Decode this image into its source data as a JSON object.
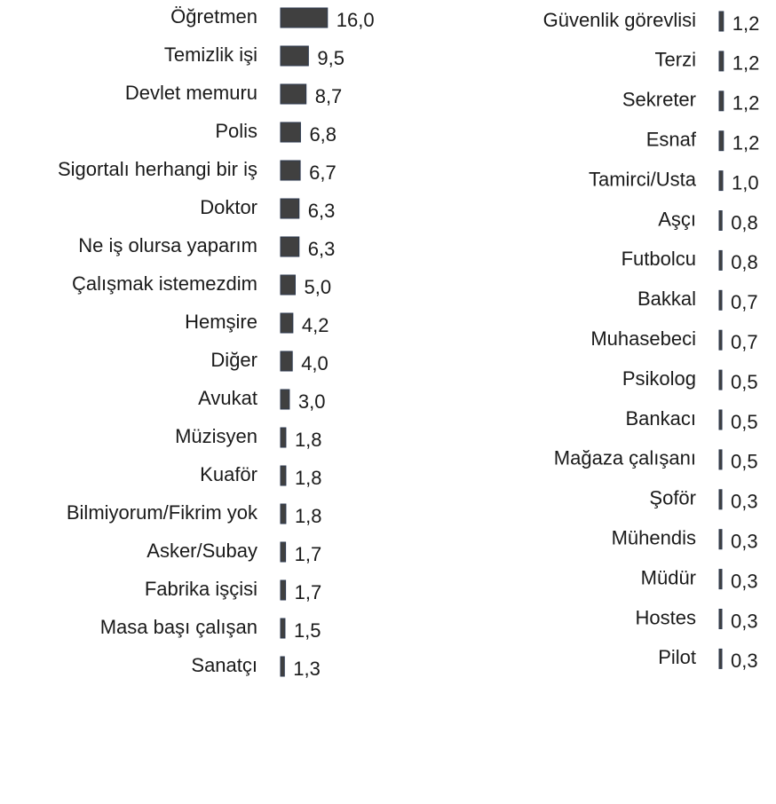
{
  "chart_data": [
    {
      "type": "bar",
      "color": "#404040",
      "categories": [
        "Öğretmen",
        "Temizlik işi",
        "Devlet memuru",
        "Polis",
        "Sigortalı herhangi bir iş",
        "Doktor",
        "Ne iş olursa yaparım",
        "Çalışmak istemezdim",
        "Hemşire",
        "Diğer",
        "Avukat",
        "Müzisyen",
        "Kuaför",
        "Bilmiyorum/Fikrim yok",
        "Asker/Subay",
        "Fabrika işçisi",
        "Masa başı çalışan",
        "Sanatçı"
      ],
      "values": [
        16.0,
        9.5,
        8.7,
        6.8,
        6.7,
        6.3,
        6.3,
        5.0,
        4.2,
        4.0,
        3.0,
        1.8,
        1.8,
        1.8,
        1.7,
        1.7,
        1.5,
        1.3
      ],
      "value_labels": [
        "16,0",
        "9,5",
        "8,7",
        "6,8",
        "6,7",
        "6,3",
        "6,3",
        "5,0",
        "4,2",
        "4,0",
        "3,0",
        "1,8",
        "1,8",
        "1,8",
        "1,7",
        "1,7",
        "1,5",
        "1,3"
      ]
    },
    {
      "type": "bar",
      "color": "#404040",
      "categories": [
        "Güvenlik görevlisi",
        "Terzi",
        "Sekreter",
        "Esnaf",
        "Tamirci/Usta",
        "Aşçı",
        "Futbolcu",
        "Bakkal",
        "Muhasebeci",
        "Psikolog",
        "Bankacı",
        "Mağaza çalışanı",
        "Şoför",
        "Mühendis",
        "Müdür",
        "Hostes",
        "Pilot"
      ],
      "values": [
        1.2,
        1.2,
        1.2,
        1.2,
        1.0,
        0.8,
        0.8,
        0.7,
        0.7,
        0.5,
        0.5,
        0.5,
        0.3,
        0.3,
        0.3,
        0.3,
        0.3
      ],
      "value_labels": [
        "1,2",
        "1,2",
        "1,2",
        "1,2",
        "1,0",
        "0,8",
        "0,8",
        "0,7",
        "0,7",
        "0,5",
        "0,5",
        "0,5",
        "0,3",
        "0,3",
        "0,3",
        "0,3",
        "0,3"
      ]
    }
  ]
}
